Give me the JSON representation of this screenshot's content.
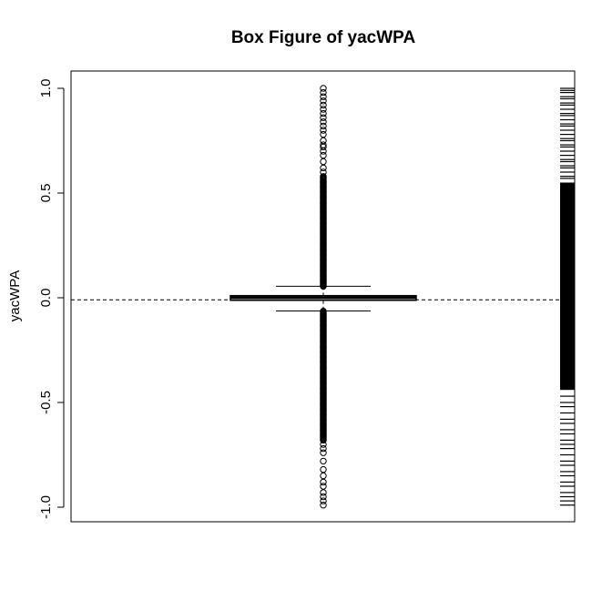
{
  "chart_data": {
    "type": "box",
    "title": "Box Figure of yacWPA",
    "xlabel": "",
    "ylabel": "yacWPA",
    "ylim": [
      -1.03,
      1.1
    ],
    "y_ticks": [
      1.0,
      0.5,
      0.0,
      -0.5,
      -1.0
    ],
    "y_tick_labels": [
      "1.0",
      "0.5",
      "0.0",
      "-0.5",
      "-1.0"
    ],
    "box": {
      "q1": -0.012,
      "median": 0.0,
      "q3": 0.01,
      "whisker_low": -0.063,
      "whisker_high": 0.055
    },
    "reference_line": {
      "y": -0.01,
      "style": "dashed"
    },
    "outliers_high_dense_range": [
      0.055,
      0.58
    ],
    "outliers_high_sparse": [
      0.6,
      0.62,
      0.65,
      0.68,
      0.7,
      0.72,
      0.73,
      0.75,
      0.78,
      0.8,
      0.82,
      0.84,
      0.86,
      0.88,
      0.9,
      0.92,
      0.94,
      0.96,
      0.98,
      1.0
    ],
    "outliers_low_dense_range": [
      -0.68,
      -0.063
    ],
    "outliers_low_sparse": [
      -0.7,
      -0.72,
      -0.74,
      -0.78,
      -0.82,
      -0.85,
      -0.88,
      -0.9,
      -0.93,
      -0.95,
      -0.97,
      -0.99
    ],
    "rug_dense_range": [
      -0.44,
      0.55
    ],
    "rug_sparse": [
      1.0,
      0.99,
      0.98,
      0.96,
      0.95,
      0.93,
      0.92,
      0.9,
      0.88,
      0.87,
      0.85,
      0.83,
      0.82,
      0.8,
      0.78,
      0.76,
      0.75,
      0.73,
      0.72,
      0.7,
      0.68,
      0.66,
      0.65,
      0.63,
      0.62,
      0.6,
      0.58,
      0.57,
      -0.47,
      -0.5,
      -0.52,
      -0.55,
      -0.58,
      -0.6,
      -0.63,
      -0.65,
      -0.68,
      -0.7,
      -0.72,
      -0.75,
      -0.78,
      -0.8,
      -0.83,
      -0.85,
      -0.88,
      -0.9,
      -0.93,
      -0.95,
      -0.97,
      -0.99
    ],
    "grid": false,
    "legend": "none"
  }
}
